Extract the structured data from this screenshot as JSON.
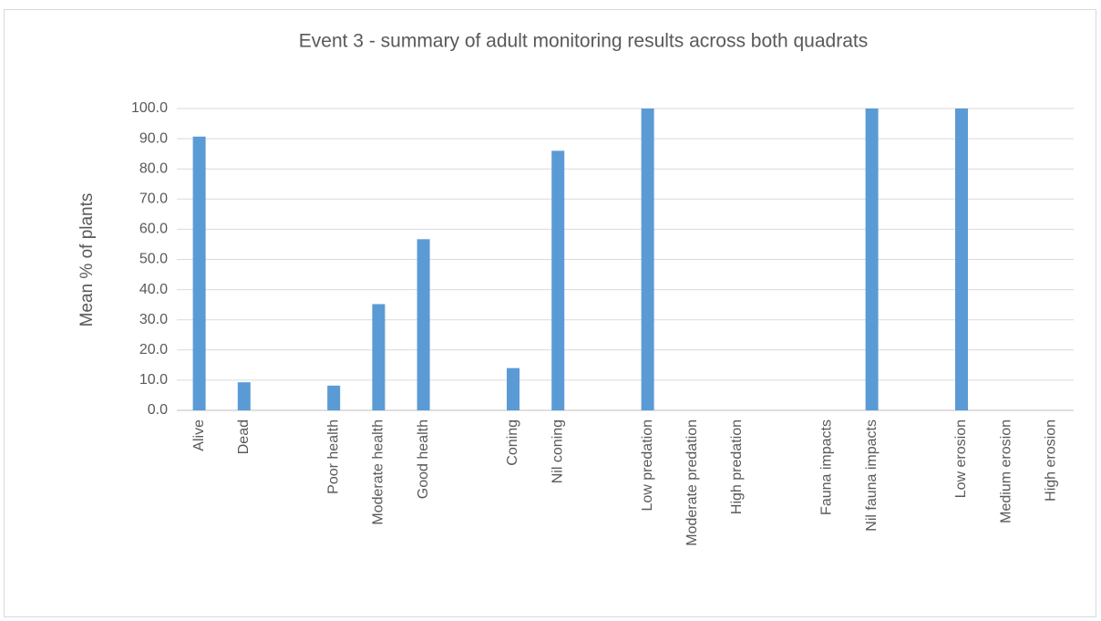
{
  "chart_data": {
    "type": "bar",
    "title": "Event 3 - summary of adult monitoring results across both quadrats",
    "y_label": "Mean % of plants",
    "categories": [
      "Alive",
      "Dead",
      null,
      "Poor health",
      "Moderate health",
      "Good health",
      null,
      "Coning",
      "Nil coning",
      null,
      "Low predation",
      "Moderate predation",
      "High predation",
      null,
      "Fauna impacts",
      "Nil fauna impacts",
      null,
      "Low erosion",
      "Medium erosion",
      "High erosion"
    ],
    "values": [
      90.7,
      9.3,
      null,
      8.2,
      35.2,
      56.7,
      null,
      14.0,
      86.0,
      null,
      100,
      0,
      0,
      null,
      0,
      100,
      null,
      100,
      0,
      0
    ],
    "color": "#5b9bd5",
    "ylim": [
      0,
      100
    ],
    "yticks": [
      {
        "value": 0,
        "label": "0.0"
      },
      {
        "value": 10,
        "label": "10.0"
      },
      {
        "value": 20,
        "label": "20.0"
      },
      {
        "value": 30,
        "label": "30.0"
      },
      {
        "value": 40,
        "label": "40.0"
      },
      {
        "value": 50,
        "label": "50.0"
      },
      {
        "value": 60,
        "label": "60.0"
      },
      {
        "value": 70,
        "label": "70.0"
      },
      {
        "value": 80,
        "label": "80.0"
      },
      {
        "value": 90,
        "label": "90.0"
      },
      {
        "value": 100,
        "label": "100.0"
      }
    ],
    "grid": true
  }
}
